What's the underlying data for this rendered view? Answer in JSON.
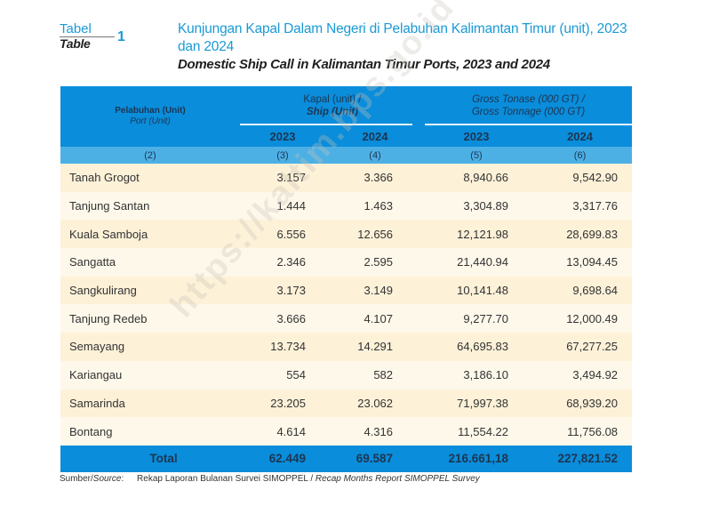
{
  "label": {
    "id": "Tabel",
    "en": "Table",
    "number": "1"
  },
  "title": {
    "id": "Kunjungan Kapal Dalam Negeri di Pelabuhan Kalimantan Timur (unit), 2023 dan 2024",
    "en": "Domestic Ship Call in Kalimantan Timur Ports, 2023 and 2024"
  },
  "header": {
    "port_id": "Pelabuhan (Unit)",
    "port_en": "Port (Unit)",
    "kapal_id": "Kapal (unit) /",
    "kapal_en": "Ship (Unit)",
    "gross_id": "Gross Tonase (000 GT) /",
    "gross_en": "Gross Tonnage (000 GT)",
    "years": [
      "2023",
      "2024",
      "2023",
      "2024"
    ],
    "col_numbers": [
      "(2)",
      "(3)",
      "(4)",
      "(5)",
      "(6)"
    ]
  },
  "rows": [
    {
      "port": "Tanah Grogot",
      "kapal_2023": "3.157",
      "kapal_2024": "3.366",
      "gt_2023": "8,940.66",
      "gt_2024": "9,542.90"
    },
    {
      "port": "Tanjung Santan",
      "kapal_2023": "1.444",
      "kapal_2024": "1.463",
      "gt_2023": "3,304.89",
      "gt_2024": "3,317.76"
    },
    {
      "port": "Kuala Samboja",
      "kapal_2023": "6.556",
      "kapal_2024": "12.656",
      "gt_2023": "12,121.98",
      "gt_2024": "28,699.83"
    },
    {
      "port": "Sangatta",
      "kapal_2023": "2.346",
      "kapal_2024": "2.595",
      "gt_2023": "21,440.94",
      "gt_2024": "13,094.45"
    },
    {
      "port": "Sangkulirang",
      "kapal_2023": "3.173",
      "kapal_2024": "3.149",
      "gt_2023": "10,141.48",
      "gt_2024": "9,698.64"
    },
    {
      "port": "Tanjung Redeb",
      "kapal_2023": "3.666",
      "kapal_2024": "4.107",
      "gt_2023": "9,277.70",
      "gt_2024": "12,000.49"
    },
    {
      "port": "Semayang",
      "kapal_2023": "13.734",
      "kapal_2024": "14.291",
      "gt_2023": "64,695.83",
      "gt_2024": "67,277.25"
    },
    {
      "port": "Kariangau",
      "kapal_2023": "554",
      "kapal_2024": "582",
      "gt_2023": "3,186.10",
      "gt_2024": "3,494.92"
    },
    {
      "port": "Samarinda",
      "kapal_2023": "23.205",
      "kapal_2024": "23.062",
      "gt_2023": "71,997.38",
      "gt_2024": "68,939.20"
    },
    {
      "port": "Bontang",
      "kapal_2023": "4.614",
      "kapal_2024": "4.316",
      "gt_2023": "11,554.22",
      "gt_2024": "11,756.08"
    }
  ],
  "total": {
    "label": "Total",
    "kapal_2023": "62.449",
    "kapal_2024": "69.587",
    "gt_2023": "216.661,18",
    "gt_2024": "227,821.52"
  },
  "source": {
    "label_id": "Sumber/",
    "label_en": "Source",
    "text_id": "Rekap Laporan Bulanan Survei SIMOPPEL / ",
    "text_en": "Recap Months Report SIMOPPEL Survey"
  },
  "watermark": "https://kaltim.bps.go.id"
}
